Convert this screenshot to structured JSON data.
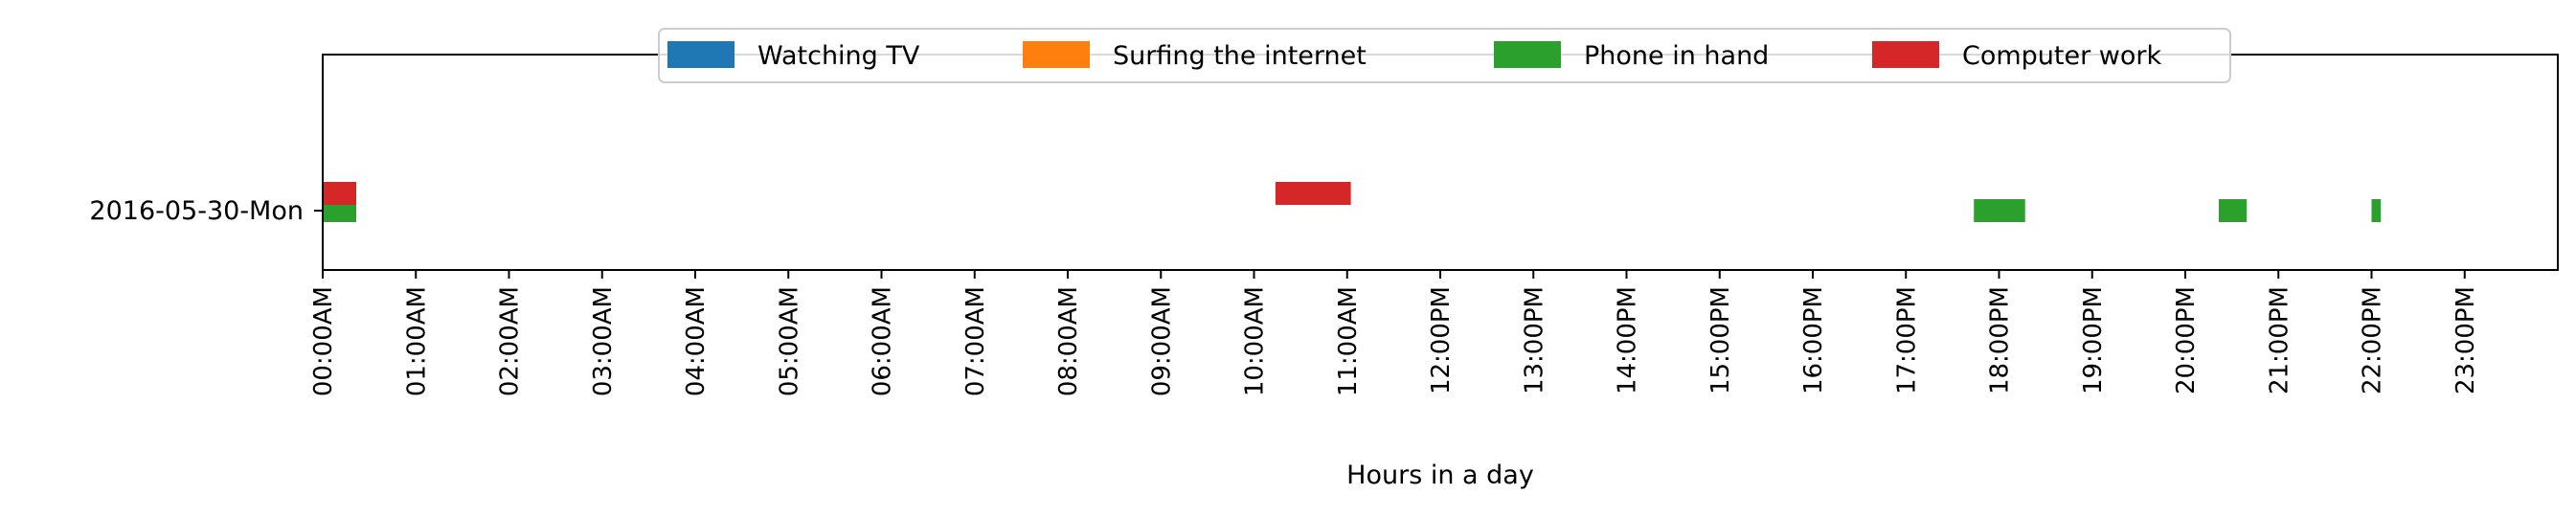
{
  "chart_data": {
    "type": "bar",
    "orientation": "horizontal-timeline",
    "categories": [
      "2016-05-30-Mon"
    ],
    "xlabel": "Hours in a day",
    "ylabel": "",
    "xlim": [
      0,
      24
    ],
    "x_tick_labels": [
      "00:00AM",
      "01:00AM",
      "02:00AM",
      "03:00AM",
      "04:00AM",
      "05:00AM",
      "06:00AM",
      "07:00AM",
      "08:00AM",
      "09:00AM",
      "10:00AM",
      "11:00AM",
      "12:00PM",
      "13:00PM",
      "14:00PM",
      "15:00PM",
      "16:00PM",
      "17:00PM",
      "18:00PM",
      "19:00PM",
      "20:00PM",
      "21:00PM",
      "22:00PM",
      "23:00PM"
    ],
    "legend_position": "top-center",
    "grid": false,
    "series": [
      {
        "name": "Watching TV",
        "color": "#1f77b4",
        "row_offset": 0,
        "segments": []
      },
      {
        "name": "Surfing the internet",
        "color": "#ff7f0e",
        "row_offset": 0,
        "segments": []
      },
      {
        "name": "Phone in hand",
        "color": "#2ca02c",
        "row_offset": 0,
        "segments": [
          [
            0.0,
            0.36
          ],
          [
            17.73,
            18.28
          ],
          [
            20.36,
            20.66
          ],
          [
            22.0,
            22.1
          ]
        ]
      },
      {
        "name": "Computer work",
        "color": "#d62728",
        "row_offset": 0.12,
        "segments": [
          [
            0.0,
            0.36
          ],
          [
            10.23,
            11.04
          ]
        ]
      }
    ]
  }
}
